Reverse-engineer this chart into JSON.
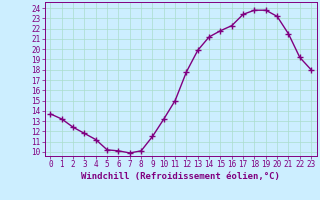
{
  "x": [
    0,
    1,
    2,
    3,
    4,
    5,
    6,
    7,
    8,
    9,
    10,
    11,
    12,
    13,
    14,
    15,
    16,
    17,
    18,
    19,
    20,
    21,
    22,
    23
  ],
  "y": [
    13.7,
    13.2,
    12.4,
    11.8,
    11.2,
    10.2,
    10.1,
    9.9,
    10.1,
    11.5,
    13.2,
    15.0,
    17.8,
    19.9,
    21.2,
    21.8,
    22.3,
    23.4,
    23.8,
    23.8,
    23.2,
    21.5,
    19.2,
    18.0
  ],
  "color": "#800080",
  "bg_color": "#cceeff",
  "grid_color": "#aaddcc",
  "xlabel": "Windchill (Refroidissement éolien,°C)",
  "ylabel_ticks": [
    10,
    11,
    12,
    13,
    14,
    15,
    16,
    17,
    18,
    19,
    20,
    21,
    22,
    23,
    24
  ],
  "xtick_labels": [
    "0",
    "1",
    "2",
    "3",
    "4",
    "5",
    "6",
    "7",
    "8",
    "9",
    "10",
    "11",
    "12",
    "13",
    "14",
    "15",
    "16",
    "17",
    "18",
    "19",
    "20",
    "21",
    "22",
    "23"
  ],
  "xlim": [
    -0.5,
    23.5
  ],
  "ylim": [
    9.6,
    24.6
  ],
  "marker": "+",
  "markersize": 4,
  "linewidth": 1.0,
  "xlabel_fontsize": 6.5,
  "tick_fontsize": 5.5
}
